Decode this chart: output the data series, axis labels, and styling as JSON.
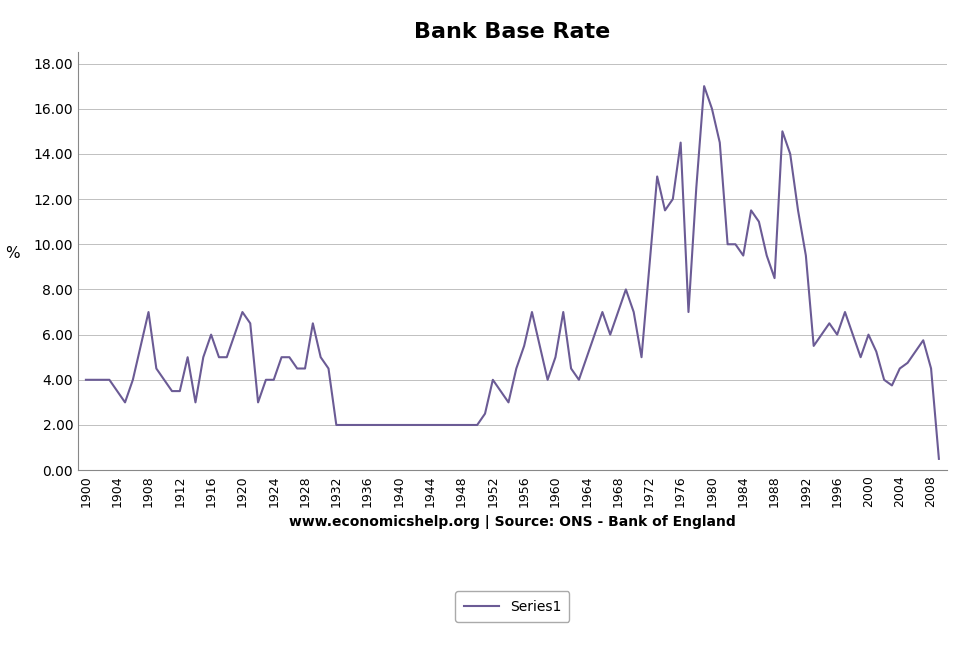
{
  "title": "Bank Base Rate",
  "ylabel": "%",
  "xlabel": "www.economicshelp.org | Source: ONS - Bank of England",
  "legend_label": "Series1",
  "line_color": "#6B5B95",
  "background_color": "#ffffff",
  "ylim_min": 0.0,
  "ylim_max": 18.5,
  "yticks": [
    0.0,
    2.0,
    4.0,
    6.0,
    8.0,
    10.0,
    12.0,
    14.0,
    16.0,
    18.0
  ],
  "xlim_min": 1899,
  "xlim_max": 2010,
  "xtick_start": 1900,
  "xtick_end": 2009,
  "xtick_step": 4,
  "years": [
    1900,
    1901,
    1902,
    1903,
    1904,
    1905,
    1906,
    1907,
    1908,
    1909,
    1910,
    1911,
    1912,
    1913,
    1914,
    1915,
    1916,
    1917,
    1918,
    1919,
    1920,
    1921,
    1922,
    1923,
    1924,
    1925,
    1926,
    1927,
    1928,
    1929,
    1930,
    1931,
    1932,
    1933,
    1934,
    1935,
    1936,
    1937,
    1938,
    1939,
    1940,
    1941,
    1942,
    1943,
    1944,
    1945,
    1946,
    1947,
    1948,
    1949,
    1950,
    1951,
    1952,
    1953,
    1954,
    1955,
    1956,
    1957,
    1958,
    1959,
    1960,
    1961,
    1962,
    1963,
    1964,
    1965,
    1966,
    1967,
    1968,
    1969,
    1970,
    1971,
    1972,
    1973,
    1974,
    1975,
    1976,
    1977,
    1978,
    1979,
    1980,
    1981,
    1982,
    1983,
    1984,
    1985,
    1986,
    1987,
    1988,
    1989,
    1990,
    1991,
    1992,
    1993,
    1994,
    1995,
    1996,
    1997,
    1998,
    1999,
    2000,
    2001,
    2002,
    2003,
    2004,
    2005,
    2006,
    2007,
    2008,
    2009
  ],
  "rates": [
    4.0,
    4.0,
    4.0,
    4.0,
    3.5,
    3.0,
    4.0,
    5.5,
    7.0,
    4.5,
    4.0,
    3.5,
    3.5,
    5.0,
    3.0,
    5.0,
    6.0,
    5.0,
    5.0,
    6.0,
    7.0,
    6.5,
    3.0,
    4.0,
    4.0,
    5.0,
    5.0,
    4.5,
    4.5,
    6.5,
    5.0,
    4.5,
    2.0,
    2.0,
    2.0,
    2.0,
    2.0,
    2.0,
    2.0,
    2.0,
    2.0,
    2.0,
    2.0,
    2.0,
    2.0,
    2.0,
    2.0,
    2.0,
    2.0,
    2.0,
    2.0,
    2.5,
    4.0,
    3.5,
    3.0,
    4.5,
    5.5,
    7.0,
    5.5,
    4.0,
    5.0,
    7.0,
    4.5,
    4.0,
    5.0,
    6.0,
    7.0,
    6.0,
    7.0,
    8.0,
    7.0,
    5.0,
    9.0,
    13.0,
    11.5,
    12.0,
    14.5,
    7.0,
    12.5,
    17.0,
    16.0,
    14.5,
    10.0,
    10.0,
    9.5,
    11.5,
    11.0,
    9.5,
    8.5,
    15.0,
    14.0,
    11.5,
    9.5,
    5.5,
    6.0,
    6.5,
    6.0,
    7.0,
    6.0,
    5.0,
    6.0,
    5.25,
    4.0,
    3.75,
    4.5,
    4.75,
    5.25,
    5.75,
    4.5,
    0.5
  ]
}
